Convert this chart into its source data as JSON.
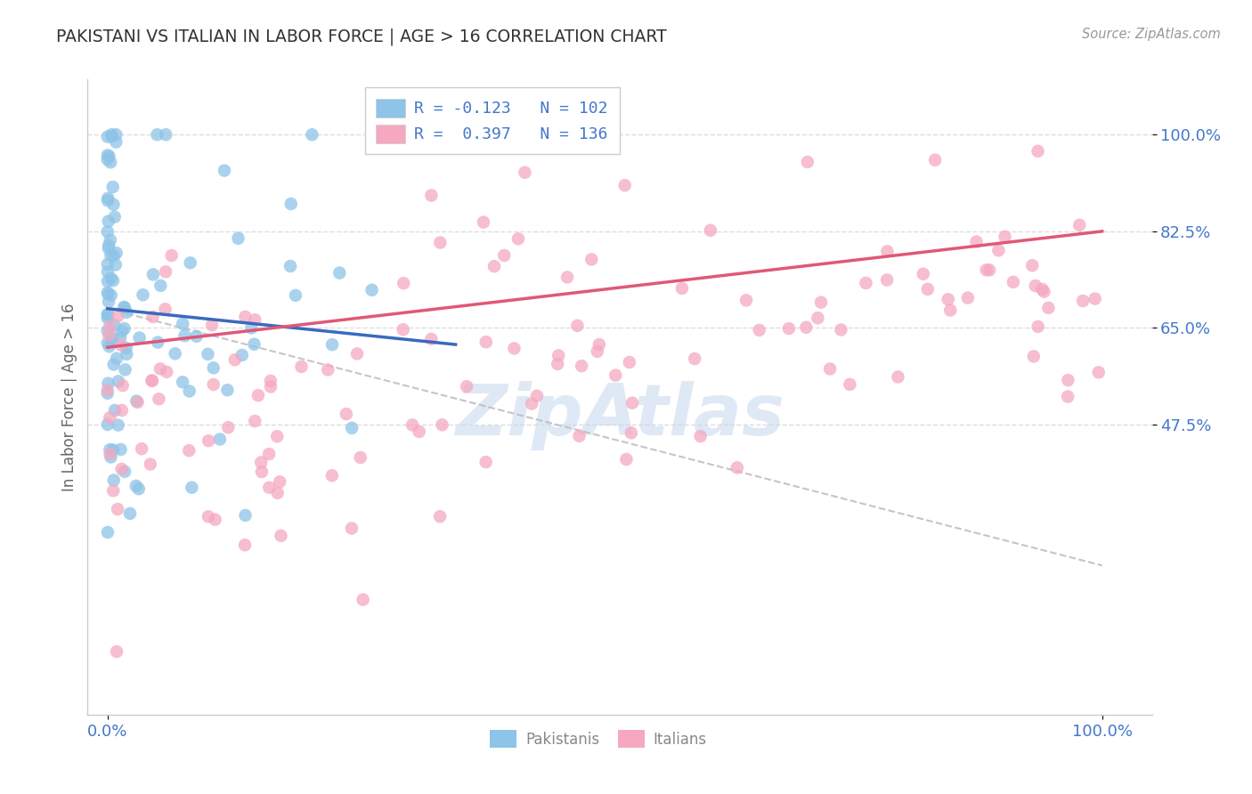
{
  "title": "PAKISTANI VS ITALIAN IN LABOR FORCE | AGE > 16 CORRELATION CHART",
  "source": "Source: ZipAtlas.com",
  "ylabel": "In Labor Force | Age > 16",
  "xlim": [
    -0.02,
    1.05
  ],
  "ylim": [
    -0.05,
    1.1
  ],
  "x_tick_labels": [
    "0.0%",
    "100.0%"
  ],
  "x_tick_positions": [
    0.0,
    1.0
  ],
  "y_tick_labels": [
    "100.0%",
    "82.5%",
    "65.0%",
    "47.5%"
  ],
  "y_tick_positions": [
    1.0,
    0.825,
    0.65,
    0.475
  ],
  "pakistani_R": -0.123,
  "pakistani_N": 102,
  "italian_R": 0.397,
  "italian_N": 136,
  "pakistani_color": "#8ec4e8",
  "italian_color": "#f5a8c0",
  "regression_line_pakistani_color": "#3a6abf",
  "regression_line_italian_color": "#e05878",
  "dashed_line_color": "#bbbbbb",
  "background_color": "#ffffff",
  "grid_color": "#dddddd",
  "title_color": "#333333",
  "label_color": "#666666",
  "tick_label_color": "#4477cc",
  "legend_pakistani_label": "Pakistanis",
  "legend_italian_label": "Italians",
  "watermark": "ZipAtlas",
  "pak_line_x0": 0.0,
  "pak_line_y0": 0.685,
  "pak_line_x1": 0.35,
  "pak_line_y1": 0.62,
  "ital_line_x0": 0.0,
  "ital_line_y0": 0.615,
  "ital_line_x1": 1.0,
  "ital_line_y1": 0.825,
  "dash_line_x0": 0.0,
  "dash_line_y0": 0.685,
  "dash_line_x1": 1.0,
  "dash_line_y1": 0.22
}
